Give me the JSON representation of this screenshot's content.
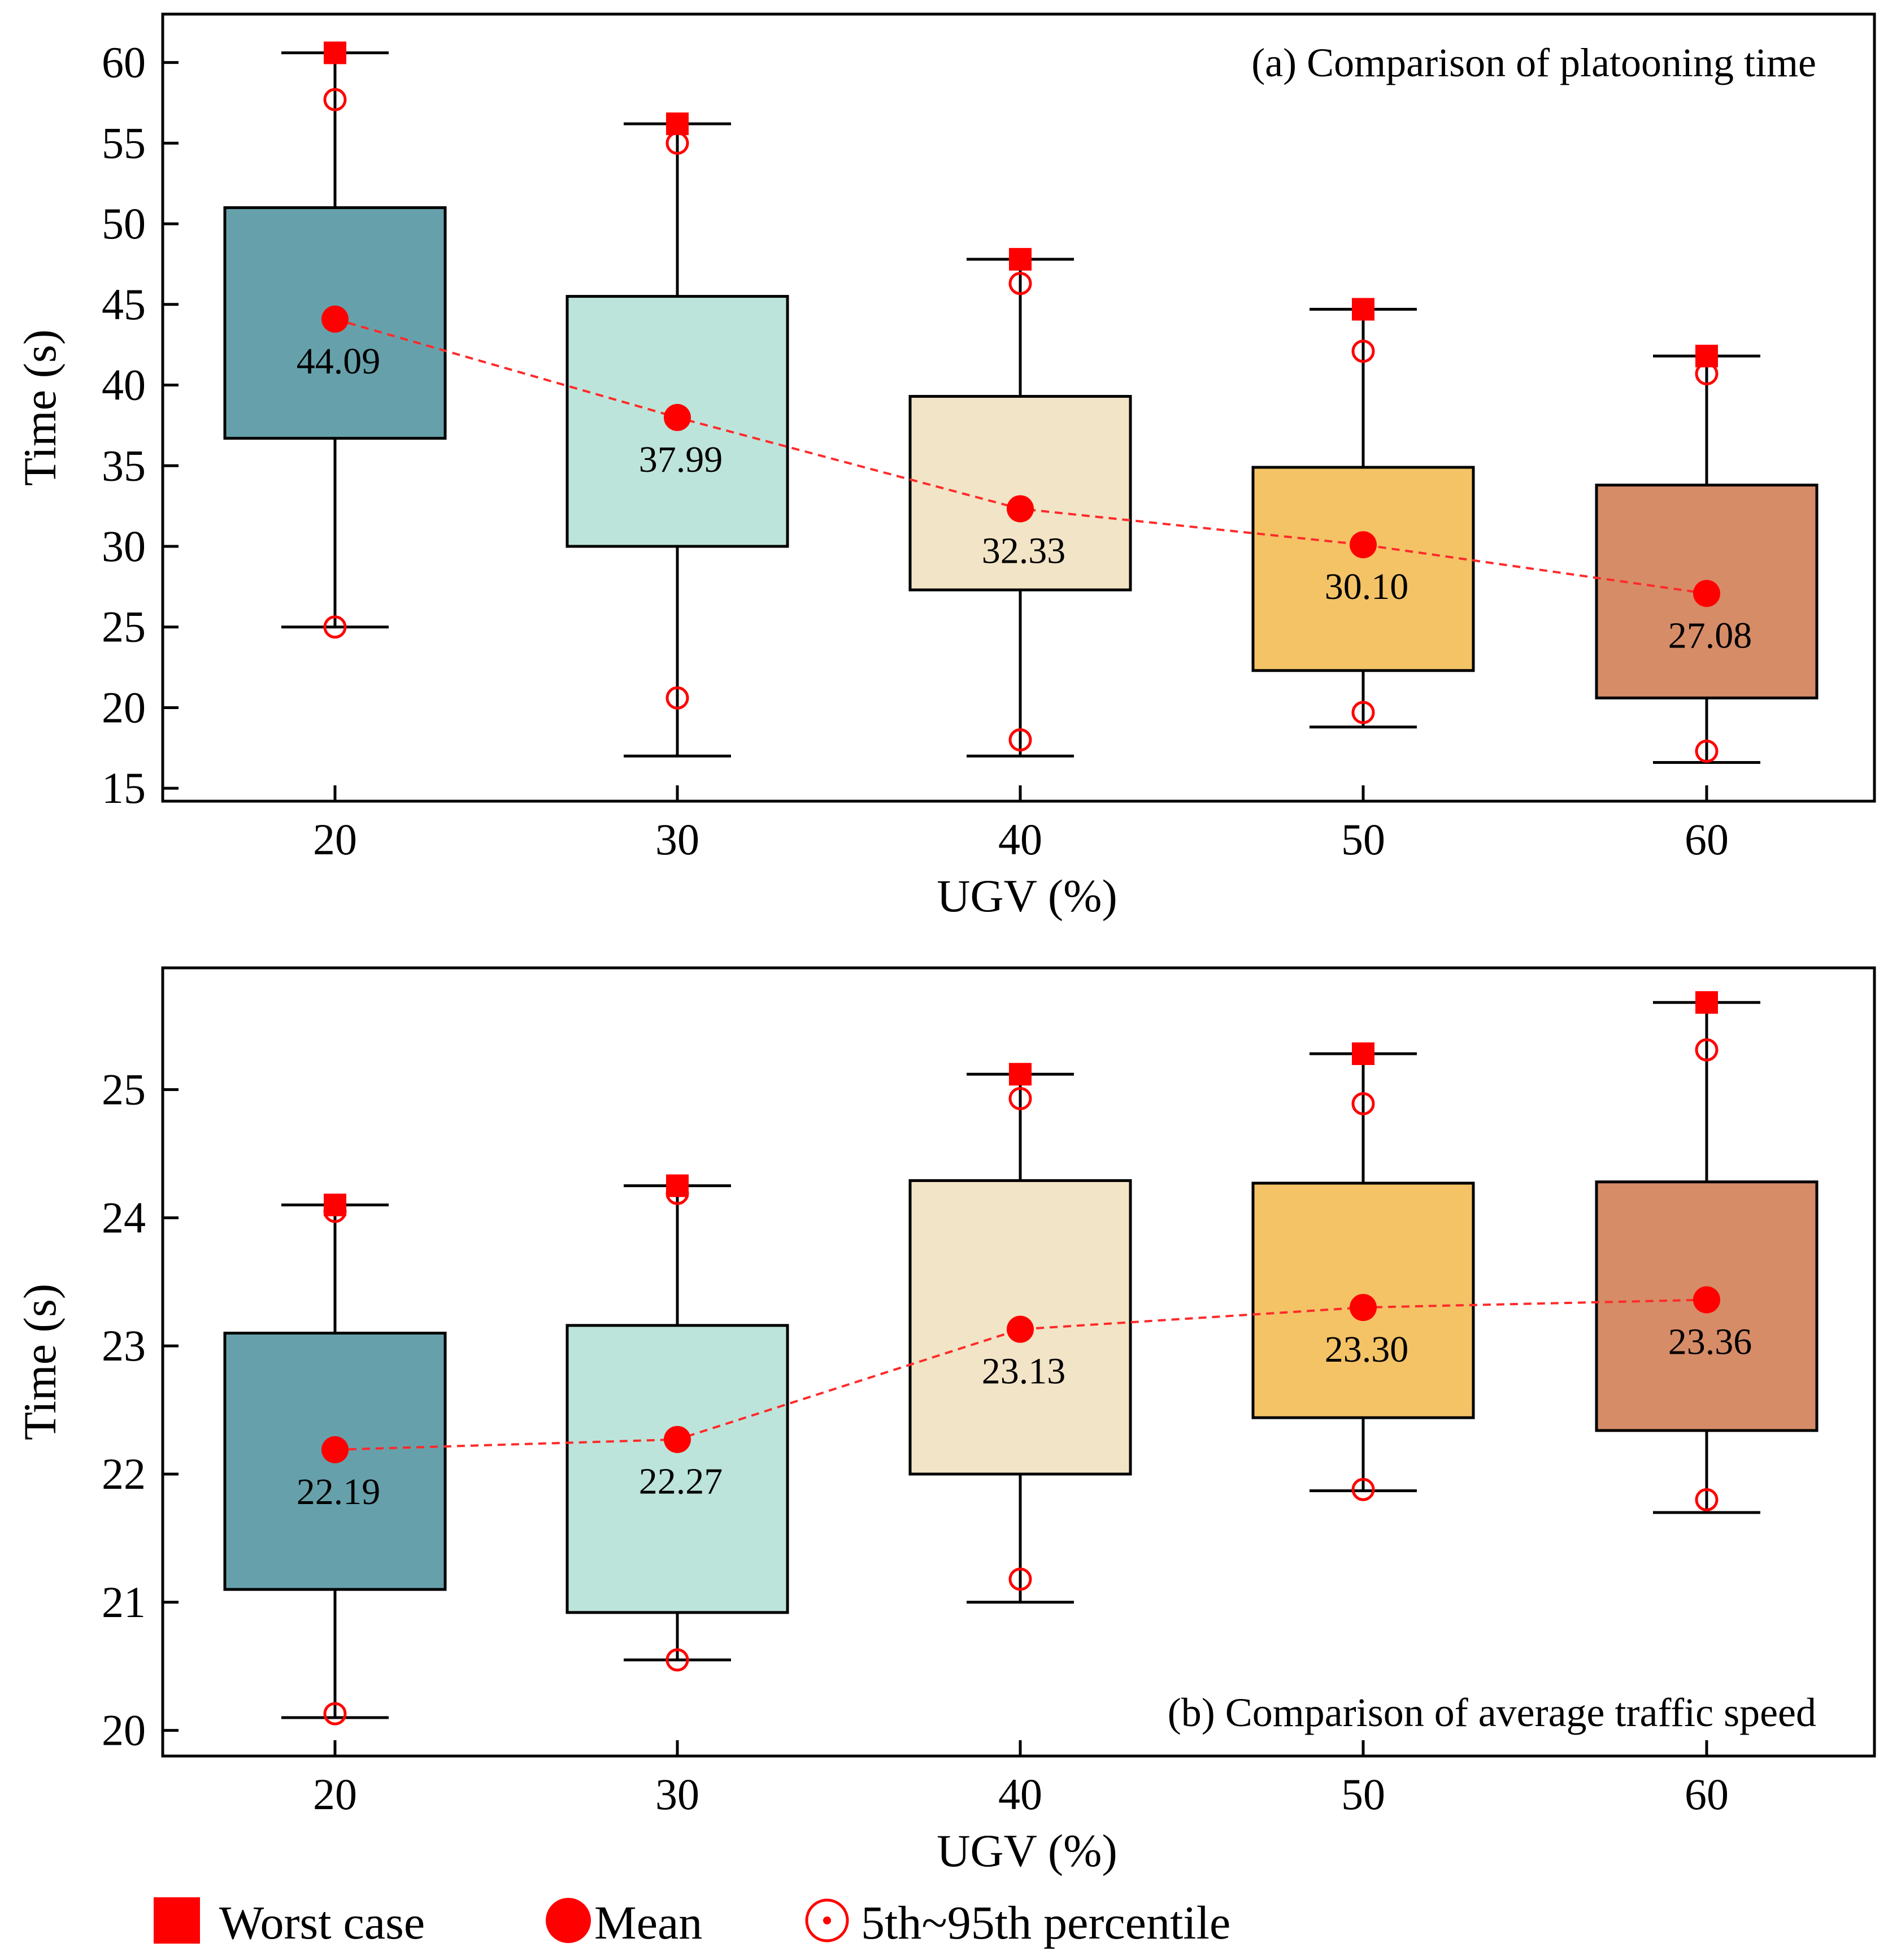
{
  "legend": {
    "worst": "Worst case",
    "mean": "Mean",
    "percentile": "5th~95th percentile"
  },
  "colors": {
    "boxes": [
      "#66a1ab",
      "#bde4da",
      "#f2e4c6",
      "#f3c366",
      "#d68c67"
    ],
    "marker": "#ff0000",
    "mean_line": "#ff2a2a",
    "axis": "#000000"
  },
  "chart_data": [
    {
      "type": "box",
      "title": "(a) Comparison of platooning time",
      "xlabel": "UGV (%)",
      "ylabel": "Time (s)",
      "categories": [
        "20",
        "30",
        "40",
        "50",
        "60"
      ],
      "yticks": [
        "15",
        "20",
        "25",
        "30",
        "35",
        "40",
        "45",
        "50",
        "55",
        "60"
      ],
      "ylim": [
        14.2,
        63
      ],
      "boxes": [
        {
          "x": "20",
          "whisker_low": 25.0,
          "q1": 36.7,
          "q3": 51.0,
          "whisker_high": 60.6,
          "p5": 25.0,
          "p95": 57.7,
          "worst": 60.6,
          "mean": 44.09,
          "mean_label": "44.09"
        },
        {
          "x": "30",
          "whisker_low": 17.0,
          "q1": 30.0,
          "q3": 45.5,
          "whisker_high": 56.2,
          "p5": 20.6,
          "p95": 55.0,
          "worst": 56.2,
          "mean": 37.99,
          "mean_label": "37.99"
        },
        {
          "x": "40",
          "whisker_low": 17.0,
          "q1": 27.3,
          "q3": 39.3,
          "whisker_high": 47.8,
          "p5": 18.0,
          "p95": 46.3,
          "worst": 47.8,
          "mean": 32.33,
          "mean_label": "32.33"
        },
        {
          "x": "50",
          "whisker_low": 18.8,
          "q1": 22.3,
          "q3": 34.9,
          "whisker_high": 44.7,
          "p5": 19.7,
          "p95": 42.1,
          "worst": 44.7,
          "mean": 30.1,
          "mean_label": "30.10"
        },
        {
          "x": "60",
          "whisker_low": 16.6,
          "q1": 20.6,
          "q3": 33.8,
          "whisker_high": 41.8,
          "p5": 17.3,
          "p95": 40.7,
          "worst": 41.8,
          "mean": 27.08,
          "mean_label": "27.08"
        }
      ]
    },
    {
      "type": "box",
      "title": "(b) Comparison of average traffic speed",
      "xlabel": "UGV (%)",
      "ylabel": "Time (s)",
      "categories": [
        "20",
        "30",
        "40",
        "50",
        "60"
      ],
      "yticks": [
        "20",
        "21",
        "22",
        "23",
        "24",
        "25"
      ],
      "ylim": [
        19.8,
        25.95
      ],
      "boxes": [
        {
          "x": "20",
          "whisker_low": 20.1,
          "q1": 21.1,
          "q3": 23.1,
          "whisker_high": 24.1,
          "p5": 20.13,
          "p95": 24.05,
          "worst": 24.1,
          "mean": 22.19,
          "mean_label": "22.19"
        },
        {
          "x": "30",
          "whisker_low": 20.55,
          "q1": 20.92,
          "q3": 23.16,
          "whisker_high": 24.25,
          "p5": 20.55,
          "p95": 24.19,
          "worst": 24.25,
          "mean": 22.27,
          "mean_label": "22.27"
        },
        {
          "x": "40",
          "whisker_low": 21.0,
          "q1": 22.0,
          "q3": 24.29,
          "whisker_high": 25.12,
          "p5": 21.18,
          "p95": 24.93,
          "worst": 25.12,
          "mean": 23.13,
          "mean_label": "23.13"
        },
        {
          "x": "50",
          "whisker_low": 21.87,
          "q1": 22.44,
          "q3": 24.27,
          "whisker_high": 25.28,
          "p5": 21.88,
          "p95": 24.89,
          "worst": 25.28,
          "mean": 23.3,
          "mean_label": "23.30"
        },
        {
          "x": "60",
          "whisker_low": 21.7,
          "q1": 22.34,
          "q3": 24.28,
          "whisker_high": 25.68,
          "p5": 21.8,
          "p95": 25.31,
          "worst": 25.68,
          "mean": 23.36,
          "mean_label": "23.36"
        }
      ]
    }
  ]
}
